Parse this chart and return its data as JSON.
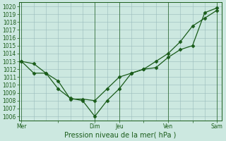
{
  "background_color": "#cce8e0",
  "grid_color": "#99bbbb",
  "line_color": "#1a5c1a",
  "title": "Pression niveau de la mer( hPa )",
  "ylim": [
    1005.5,
    1020.5
  ],
  "yticks": [
    1006,
    1007,
    1008,
    1009,
    1010,
    1011,
    1012,
    1013,
    1014,
    1015,
    1016,
    1017,
    1018,
    1019,
    1020
  ],
  "xtick_labels": [
    "Mer",
    "",
    "Dim",
    "Jeu",
    "",
    "Ven",
    "",
    "Sam"
  ],
  "xtick_positions": [
    0,
    1.5,
    3,
    4,
    5,
    6,
    7,
    8
  ],
  "line1_x": [
    0,
    0.5,
    1.0,
    1.5,
    2.0,
    2.5,
    3.0,
    3.5,
    4.0,
    4.5,
    5.0,
    5.5,
    6.0,
    6.5,
    7.0,
    7.5,
    8.0
  ],
  "line1_y": [
    1013.0,
    1012.7,
    1011.5,
    1009.5,
    1008.3,
    1008.0,
    1006.0,
    1008.0,
    1009.5,
    1011.5,
    1012.0,
    1012.2,
    1013.5,
    1014.5,
    1015.0,
    1019.2,
    1019.8
  ],
  "line2_x": [
    0,
    0.5,
    1.0,
    1.5,
    2.0,
    2.5,
    3.0,
    3.5,
    4.0,
    4.5,
    5.0,
    5.5,
    6.0,
    6.5,
    7.0,
    7.5,
    8.0
  ],
  "line2_y": [
    1013.0,
    1011.5,
    1011.5,
    1010.5,
    1008.2,
    1008.2,
    1008.0,
    1009.5,
    1011.0,
    1011.5,
    1012.0,
    1013.0,
    1014.0,
    1015.5,
    1017.5,
    1018.5,
    1019.5
  ],
  "xlim": [
    -0.1,
    8.2
  ],
  "vline_positions": [
    0,
    3,
    4,
    6,
    8
  ],
  "marker": "D",
  "markersize": 2.5,
  "tick_fontsize": 5.5,
  "title_fontsize": 7.0
}
